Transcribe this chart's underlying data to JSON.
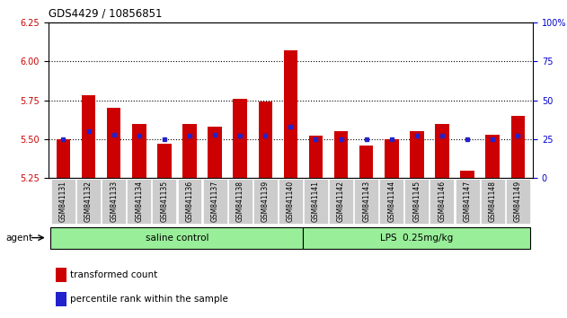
{
  "title": "GDS4429 / 10856851",
  "samples": [
    "GSM841131",
    "GSM841132",
    "GSM841133",
    "GSM841134",
    "GSM841135",
    "GSM841136",
    "GSM841137",
    "GSM841138",
    "GSM841139",
    "GSM841140",
    "GSM841141",
    "GSM841142",
    "GSM841143",
    "GSM841144",
    "GSM841145",
    "GSM841146",
    "GSM841147",
    "GSM841148",
    "GSM841149"
  ],
  "red_values": [
    5.5,
    5.78,
    5.7,
    5.6,
    5.47,
    5.6,
    5.58,
    5.76,
    5.74,
    6.07,
    5.52,
    5.55,
    5.46,
    5.5,
    5.55,
    5.6,
    5.3,
    5.53,
    5.65
  ],
  "blue_percentile": [
    25,
    30,
    28,
    27,
    25,
    27,
    28,
    27,
    27,
    33,
    25,
    25,
    25,
    25,
    27,
    27,
    25,
    25,
    27
  ],
  "ylim_left": [
    5.25,
    6.25
  ],
  "ylim_right": [
    0,
    100
  ],
  "yticks_left": [
    5.25,
    5.5,
    5.75,
    6.0,
    6.25
  ],
  "yticks_right": [
    0,
    25,
    50,
    75,
    100
  ],
  "hlines": [
    5.5,
    5.75,
    6.0
  ],
  "bar_bottom": 5.25,
  "bar_color": "#cc0000",
  "blue_color": "#2222cc",
  "group1_label": "saline control",
  "group2_label": "LPS  0.25mg/kg",
  "group1_count": 10,
  "group2_count": 9,
  "agent_label": "agent",
  "legend1": "transformed count",
  "legend2": "percentile rank within the sample",
  "bg_color": "#ffffff",
  "plot_bg": "#ffffff",
  "group_bg": "#99ee99",
  "tick_bg": "#cccccc",
  "title_color": "#000000",
  "left_tick_color": "#cc0000",
  "right_tick_color": "#0000cc"
}
